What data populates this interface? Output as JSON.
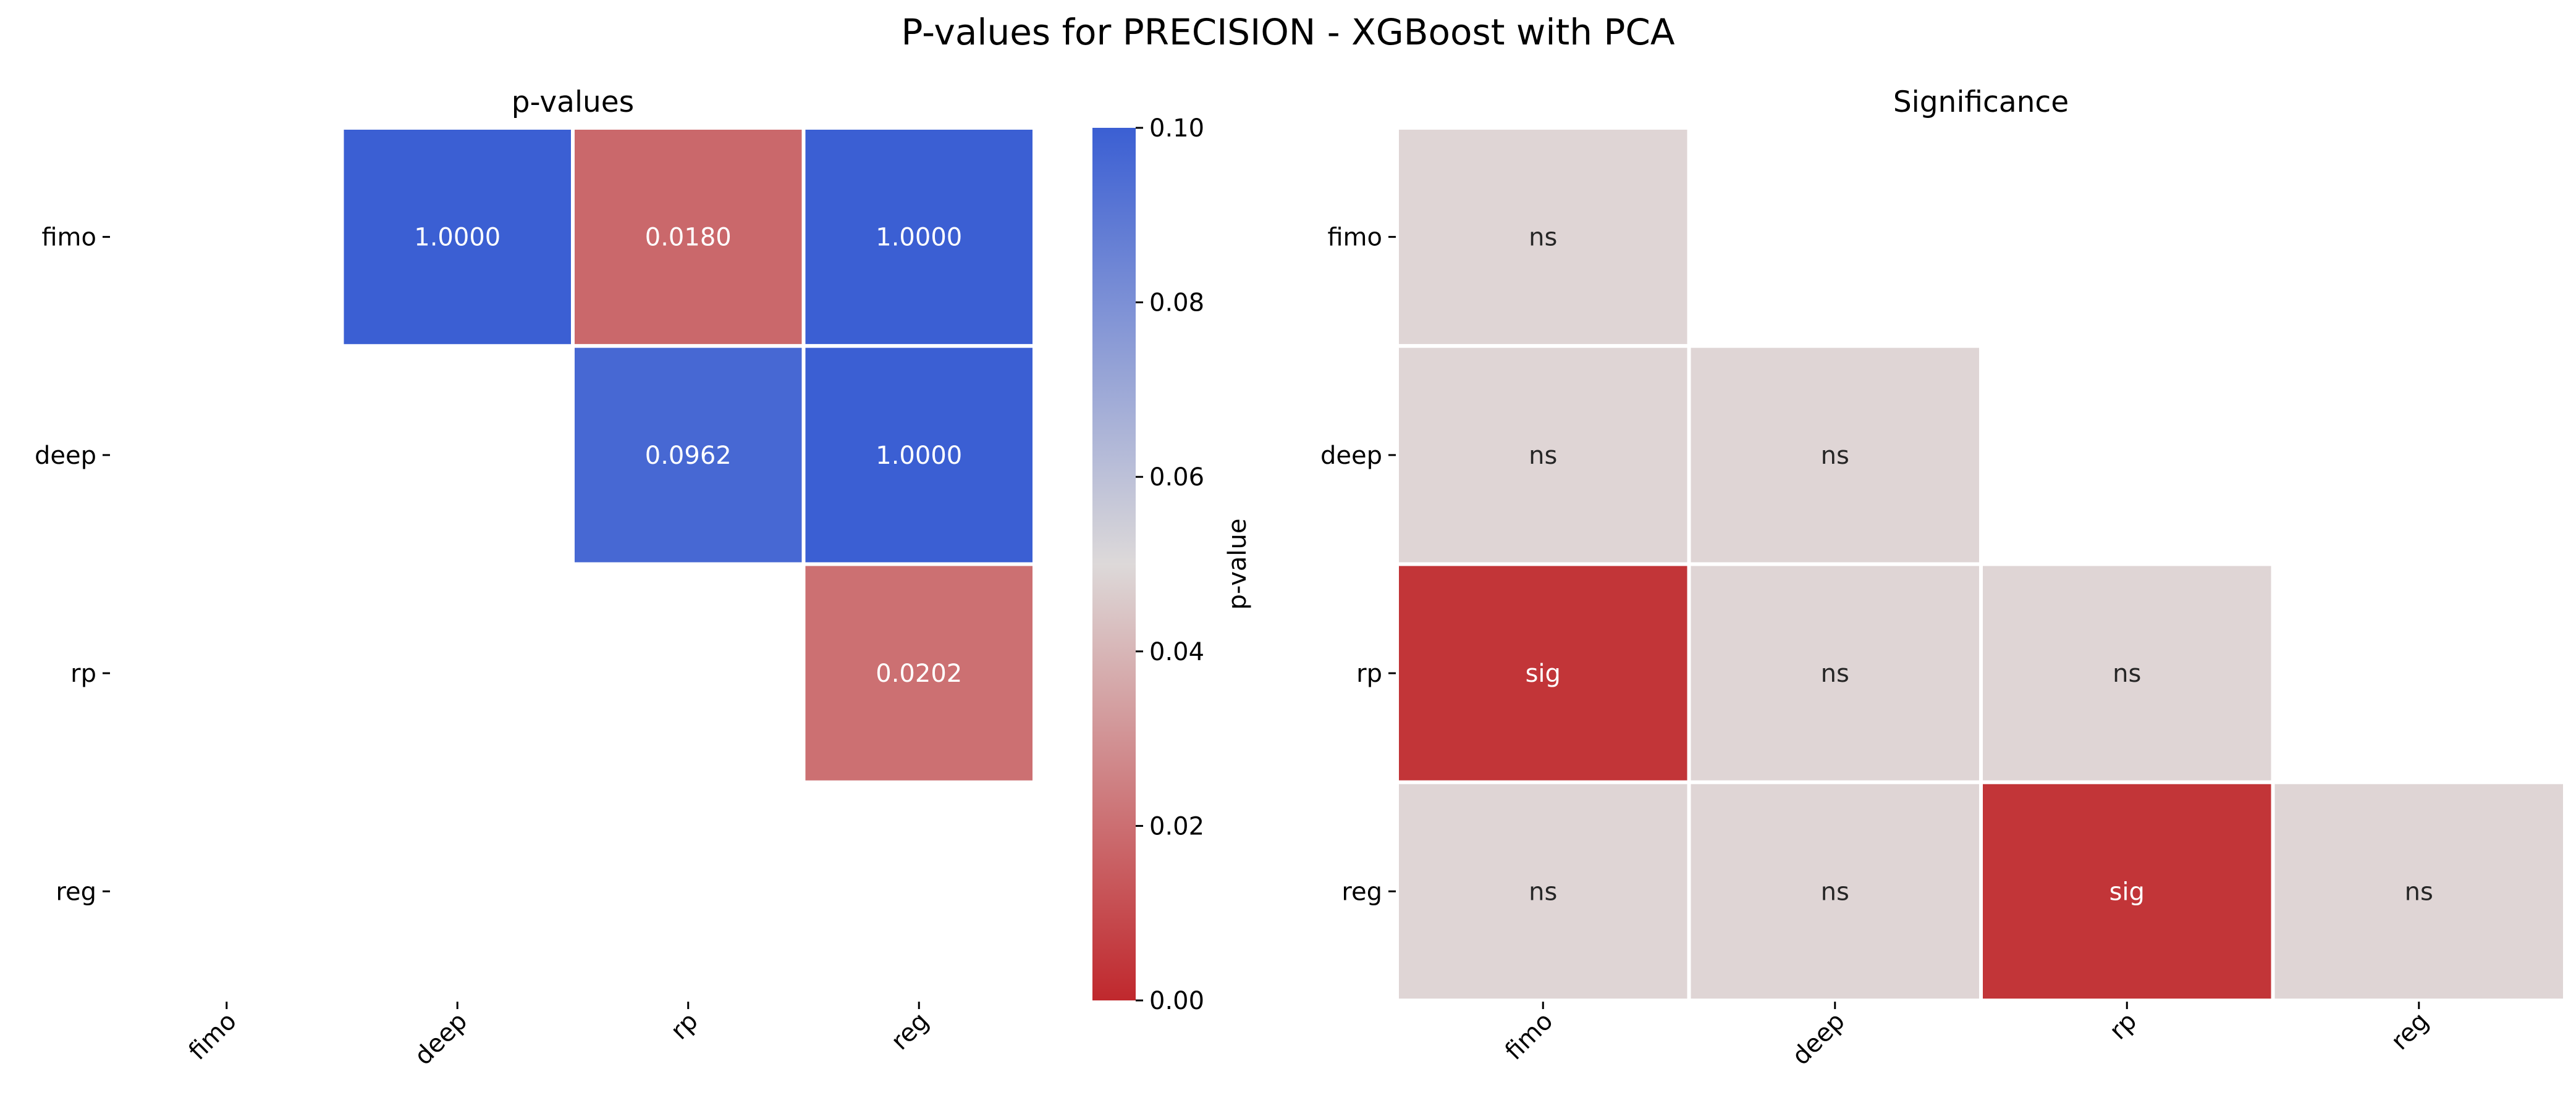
{
  "figure": {
    "title": "P-values for PRECISION - XGBoost with PCA"
  },
  "chart_data": [
    {
      "type": "heatmap",
      "title": "p-values",
      "xlabel": "",
      "ylabel": "",
      "x_categories": [
        "fimo",
        "deep",
        "rp",
        "reg"
      ],
      "y_categories": [
        "fimo",
        "deep",
        "rp",
        "reg"
      ],
      "values": [
        [
          null,
          1.0,
          0.018,
          1.0
        ],
        [
          null,
          null,
          0.0962,
          1.0
        ],
        [
          null,
          null,
          null,
          0.0202
        ],
        [
          null,
          null,
          null,
          null
        ]
      ],
      "annotations": [
        [
          null,
          "1.0000",
          "0.0180",
          "1.0000"
        ],
        [
          null,
          null,
          "0.0962",
          "1.0000"
        ],
        [
          null,
          null,
          null,
          "0.0202"
        ],
        [
          null,
          null,
          null,
          null
        ]
      ],
      "colorbar": {
        "label": "p-value",
        "range": [
          0.0,
          0.1
        ],
        "ticks": [
          "0.00",
          "0.02",
          "0.04",
          "0.06",
          "0.08",
          "0.10"
        ],
        "colormap": [
          "#c0282d",
          "#ddd9d9",
          "#3b5fd3"
        ]
      }
    },
    {
      "type": "heatmap",
      "title": "Significance",
      "xlabel": "",
      "ylabel": "",
      "x_categories": [
        "fimo",
        "deep",
        "rp",
        "reg"
      ],
      "y_categories": [
        "fimo",
        "deep",
        "rp",
        "reg"
      ],
      "values": [
        [
          "ns",
          null,
          null,
          null
        ],
        [
          "ns",
          "ns",
          null,
          null
        ],
        [
          "sig",
          "ns",
          "ns",
          null
        ],
        [
          "ns",
          "ns",
          "sig",
          "ns"
        ]
      ],
      "colors": {
        "sig": "#c23538",
        "ns": "#dfd5d5"
      }
    }
  ]
}
